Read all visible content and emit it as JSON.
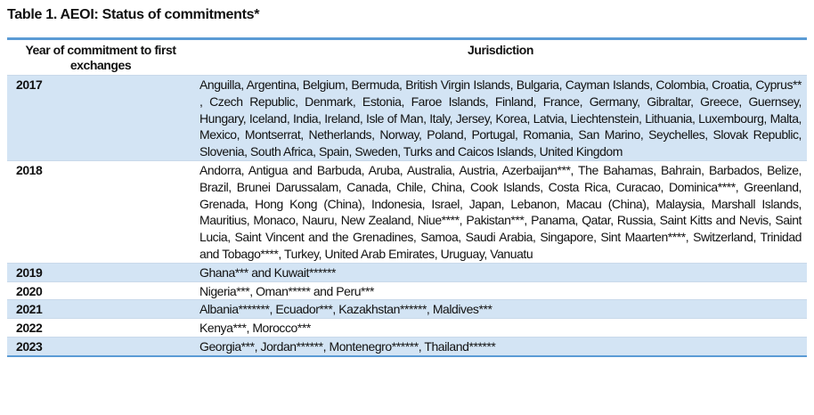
{
  "title": "Table 1. AEOI: Status of commitments*",
  "columns": [
    "Year of commitment to first exchanges",
    "Jurisdiction"
  ],
  "rows": [
    {
      "year": "2017",
      "jurisdictions": "Anguilla, Argentina, Belgium, Bermuda, British Virgin Islands, Bulgaria, Cayman Islands, Colombia, Croatia, Cyprus** , Czech Republic, Denmark, Estonia, Faroe Islands, Finland, France, Germany, Gibraltar, Greece, Guernsey, Hungary, Iceland, India, Ireland, Isle of Man, Italy, Jersey, Korea, Latvia, Liechtenstein, Lithuania, Luxembourg, Malta, Mexico, Montserrat, Netherlands, Norway, Poland, Portugal, Romania, San Marino, Seychelles, Slovak Republic, Slovenia, South Africa, Spain, Sweden, Turks and Caicos Islands, United Kingdom"
    },
    {
      "year": "2018",
      "jurisdictions": "Andorra, Antigua and Barbuda, Aruba, Australia, Austria, Azerbaijan***, The Bahamas, Bahrain, Barbados, Belize, Brazil, Brunei Darussalam, Canada, Chile, China, Cook Islands, Costa Rica, Curacao, Dominica****, Greenland, Grenada, Hong Kong (China), Indonesia, Israel, Japan, Lebanon, Macau (China), Malaysia, Marshall Islands, Mauritius, Monaco, Nauru, New Zealand, Niue****, Pakistan***, Panama, Qatar, Russia, Saint Kitts and Nevis, Saint Lucia, Saint Vincent and the Grenadines, Samoa, Saudi Arabia, Singapore, Sint Maarten****, Switzerland, Trinidad and Tobago****, Turkey, United Arab Emirates, Uruguay, Vanuatu"
    },
    {
      "year": "2019",
      "jurisdictions": "Ghana*** and Kuwait******"
    },
    {
      "year": "2020",
      "jurisdictions": "Nigeria***, Oman***** and Peru***"
    },
    {
      "year": "2021",
      "jurisdictions": "Albania*******, Ecuador***, Kazakhstan******, Maldives***"
    },
    {
      "year": "2022",
      "jurisdictions": "Kenya***, Morocco***"
    },
    {
      "year": "2023",
      "jurisdictions": "Georgia***, Jordan******, Montenegro******, Thailand******"
    }
  ],
  "colors": {
    "rule": "#5b9bd5",
    "shade": "#d3e4f4"
  }
}
